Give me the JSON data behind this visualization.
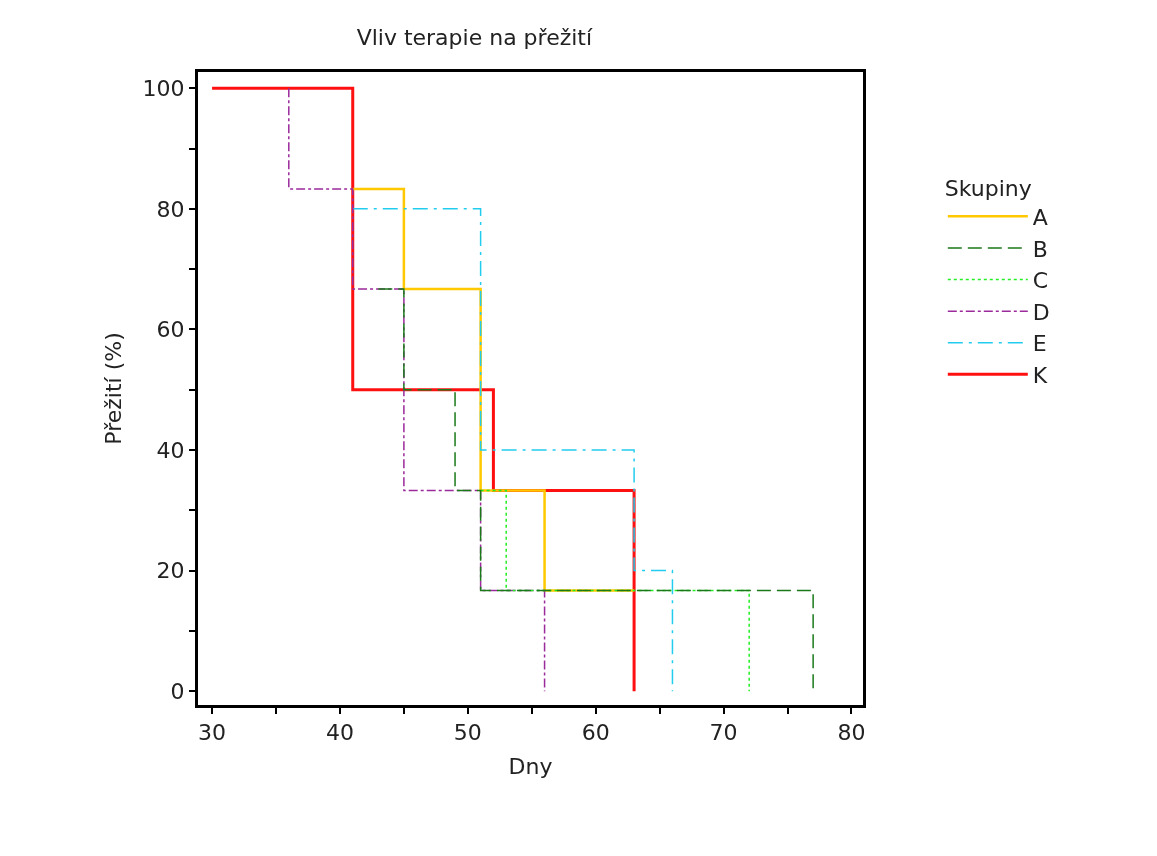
{
  "chart_data": {
    "type": "step",
    "title": "Vliv terapie na přežití",
    "xlabel": "Dny",
    "ylabel": "Přežití (%)",
    "legend_title": "Skupiny",
    "legend": "right",
    "xlim": [
      28.9,
      80.9
    ],
    "ylim": [
      -2.3,
      102.7
    ],
    "xticks": [
      30,
      {
        "value": 35,
        "label": null
      },
      40,
      {
        "value": 45,
        "label": null
      },
      50,
      {
        "value": 55,
        "label": null
      },
      60,
      {
        "value": 65,
        "label": null
      },
      70,
      {
        "value": 75,
        "label": null
      },
      80
    ],
    "yticks": [
      0,
      {
        "value": 10,
        "label": null
      },
      20,
      {
        "value": 30,
        "label": null
      },
      40,
      {
        "value": 50,
        "label": null
      },
      60,
      {
        "value": 70,
        "label": null
      },
      80,
      {
        "value": 90,
        "label": null
      },
      100
    ],
    "series": [
      {
        "name": "A",
        "color": "#ffc800",
        "line_style": "solid",
        "x": [
          41,
          45,
          51,
          56,
          63
        ],
        "values": [
          83.3,
          66.7,
          33.3,
          16.7,
          16.7
        ]
      },
      {
        "name": "B",
        "color": "#1a7a1a",
        "line_style": "dashed",
        "x": [
          43,
          45,
          49,
          51,
          77
        ],
        "values": [
          66.7,
          50,
          33.3,
          16.7,
          0
        ]
      },
      {
        "name": "C",
        "color": "#22ee22",
        "line_style": "dotted",
        "x": [
          51,
          53,
          72
        ],
        "values": [
          33.3,
          16.7,
          0
        ]
      },
      {
        "name": "D",
        "color": "#9b2a9b",
        "line_style": "dashdot",
        "x": [
          36,
          36,
          41,
          45,
          51,
          56
        ],
        "values": [
          100,
          83.3,
          66.7,
          33.3,
          16.7,
          0
        ]
      },
      {
        "name": "E",
        "color": "#22ccee",
        "line_style": "longdashdot",
        "x": [
          41,
          51,
          63,
          66
        ],
        "values": [
          80,
          40,
          20,
          0
        ]
      },
      {
        "name": "K",
        "color": "#ff1010",
        "line_style": "solid",
        "x": [
          30,
          41,
          52,
          63,
          63
        ],
        "values": [
          100,
          50,
          33.3,
          0,
          0
        ]
      }
    ]
  }
}
